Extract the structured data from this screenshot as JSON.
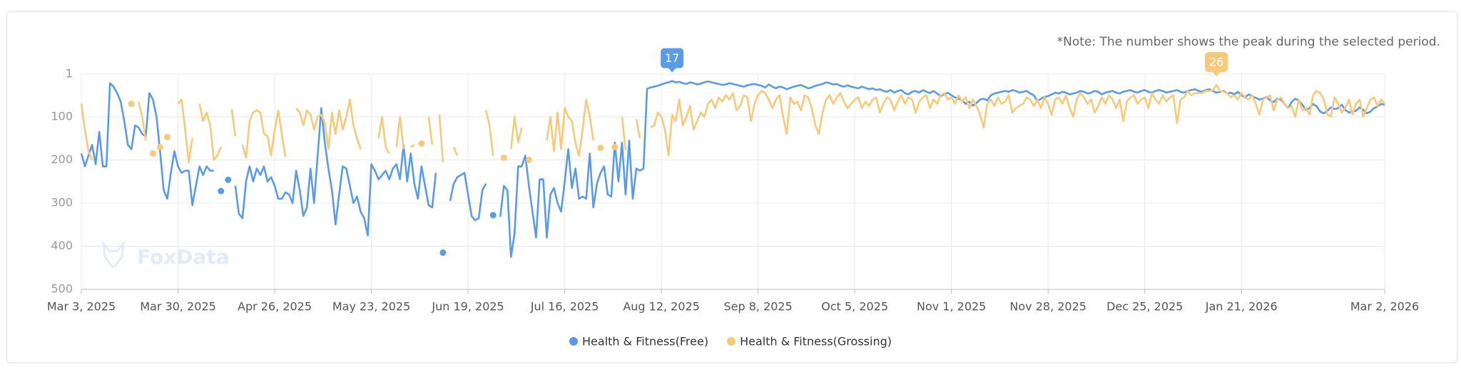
{
  "chart_data": {
    "type": "line",
    "note": "*Note: The number shows the peak during the selected period.",
    "watermark": "FoxData",
    "y_inverted": true,
    "grid": true,
    "legend": "bottom",
    "ylim": [
      1,
      500
    ],
    "yticks": [
      1,
      100,
      200,
      300,
      400,
      500
    ],
    "categories": [
      "Mar 3, 2025",
      null,
      null,
      null,
      null,
      null,
      null,
      null,
      null,
      null,
      null,
      null,
      null,
      null,
      null,
      null,
      null,
      null,
      null,
      null,
      null,
      null,
      null,
      null,
      null,
      null,
      null,
      "Mar 30, 2025",
      null,
      null,
      null,
      null,
      null,
      null,
      null,
      null,
      null,
      null,
      null,
      null,
      null,
      null,
      null,
      null,
      null,
      null,
      null,
      null,
      null,
      null,
      null,
      null,
      null,
      null,
      "Apr 26, 2025",
      null,
      null,
      null,
      null,
      null,
      null,
      null,
      null,
      null,
      null,
      null,
      null,
      null,
      null,
      null,
      null,
      null,
      null,
      null,
      null,
      null,
      null,
      null,
      null,
      null,
      null,
      "May 23, 2025",
      null,
      null,
      null,
      null,
      null,
      null,
      null,
      null,
      null,
      null,
      null,
      null,
      null,
      null,
      null,
      null,
      null,
      null,
      null,
      null,
      null,
      null,
      null,
      null,
      null,
      null,
      "Jun 19, 2025",
      null,
      null,
      null,
      null,
      null,
      null,
      null,
      null,
      null,
      null,
      null,
      null,
      null,
      null,
      null,
      null,
      null,
      null,
      null,
      null,
      null,
      null,
      null,
      null,
      null,
      null,
      "Jul 16, 2025",
      null,
      null,
      null,
      null,
      null,
      null,
      null,
      null,
      null,
      null,
      null,
      null,
      null,
      null,
      null,
      null,
      null,
      null,
      null,
      null,
      null,
      null,
      null,
      null,
      null,
      null,
      "Aug 12, 2025",
      null,
      null,
      null,
      null,
      null,
      null,
      null,
      null,
      null,
      null,
      null,
      null,
      null,
      null,
      null,
      null,
      null,
      null,
      null,
      null,
      null,
      null,
      null,
      null,
      null,
      null,
      "Sep 8, 2025",
      null,
      null,
      null,
      null,
      null,
      null,
      null,
      null,
      null,
      null,
      null,
      null,
      null,
      null,
      null,
      null,
      null,
      null,
      null,
      null,
      null,
      null,
      null,
      null,
      null,
      null,
      "Oct 5, 2025",
      null,
      null,
      null,
      null,
      null,
      null,
      null,
      null,
      null,
      null,
      null,
      null,
      null,
      null,
      null,
      null,
      null,
      null,
      null,
      null,
      null,
      null,
      null,
      null,
      null,
      null,
      "Nov 1, 2025",
      null,
      null,
      null,
      null,
      null,
      null,
      null,
      null,
      null,
      null,
      null,
      null,
      null,
      null,
      null,
      null,
      null,
      null,
      null,
      null,
      null,
      null,
      null,
      null,
      null,
      null,
      "Nov 28, 2025",
      null,
      null,
      null,
      null,
      null,
      null,
      null,
      null,
      null,
      null,
      null,
      null,
      null,
      null,
      null,
      null,
      null,
      null,
      null,
      null,
      null,
      null,
      null,
      null,
      null,
      null,
      "Dec 25, 2025",
      null,
      null,
      null,
      null,
      null,
      null,
      null,
      null,
      null,
      null,
      null,
      null,
      null,
      null,
      null,
      null,
      null,
      null,
      null,
      null,
      null,
      null,
      null,
      null,
      null,
      null,
      "Jan 21, 2026",
      null,
      null,
      null,
      null,
      null,
      null,
      null,
      null,
      null,
      null,
      null,
      null,
      null,
      null,
      null,
      null,
      null,
      null,
      null,
      null,
      null,
      null,
      null,
      null,
      null,
      null,
      null,
      null,
      null,
      null,
      null,
      null,
      null,
      null,
      null,
      null,
      null,
      null,
      null,
      "Mar 2, 2026"
    ],
    "series": [
      {
        "name": "Health & Fitness(Free)",
        "color": "#5a9be6",
        "peak_label": "17",
        "values": [
          185,
          215,
          190,
          165,
          210,
          135,
          215,
          215,
          22,
          30,
          45,
          65,
          110,
          165,
          175,
          120,
          125,
          140,
          145,
          45,
          60,
          100,
          180,
          270,
          290,
          230,
          180,
          215,
          230,
          225,
          225,
          305,
          260,
          215,
          235,
          215,
          225,
          225,
          null,
          272,
          null,
          246,
          null,
          260,
          325,
          335,
          250,
          215,
          250,
          220,
          235,
          215,
          250,
          240,
          260,
          290,
          290,
          275,
          280,
          300,
          225,
          270,
          330,
          310,
          220,
          300,
          190,
          80,
          160,
          220,
          270,
          350,
          280,
          215,
          220,
          260,
          300,
          285,
          320,
          335,
          375,
          210,
          225,
          245,
          235,
          225,
          245,
          220,
          210,
          245,
          165,
          250,
          185,
          255,
          290,
          215,
          260,
          305,
          310,
          230,
          null,
          415,
          null,
          295,
          255,
          240,
          235,
          230,
          280,
          330,
          340,
          335,
          270,
          255,
          null,
          328,
          null,
          332,
          260,
          270,
          425,
          370,
          215,
          215,
          190,
          260,
          320,
          380,
          245,
          245,
          380,
          280,
          265,
          300,
          320,
          250,
          175,
          265,
          220,
          290,
          285,
          290,
          185,
          310,
          255,
          230,
          215,
          280,
          285,
          160,
          250,
          160,
          280,
          155,
          290,
          220,
          225,
          220,
          35,
          32,
          30,
          28,
          25,
          22,
          20,
          17,
          20,
          19,
          22,
          24,
          20,
          22,
          25,
          23,
          20,
          18,
          20,
          22,
          24,
          26,
          25,
          22,
          24,
          26,
          28,
          30,
          27,
          25,
          24,
          26,
          28,
          32,
          25,
          30,
          34,
          30,
          32,
          36,
          33,
          30,
          28,
          26,
          30,
          34,
          32,
          28,
          26,
          24,
          20,
          22,
          25,
          24,
          28,
          30,
          27,
          30,
          32,
          34,
          30,
          33,
          36,
          34,
          38,
          36,
          40,
          42,
          38,
          44,
          40,
          38,
          45,
          48,
          42,
          40,
          44,
          38,
          42,
          45,
          40,
          46,
          52,
          48,
          44,
          50,
          55,
          58,
          62,
          70,
          65,
          74,
          68,
          60,
          58,
          62,
          50,
          46,
          44,
          42,
          40,
          42,
          38,
          40,
          44,
          42,
          40,
          46,
          50,
          64,
          58,
          54,
          52,
          48,
          44,
          46,
          42,
          44,
          48,
          46,
          44,
          40,
          42,
          46,
          44,
          40,
          42,
          48,
          44,
          42,
          40,
          44,
          46,
          42,
          40,
          38,
          42,
          44,
          40,
          38,
          42,
          44,
          40,
          38,
          40,
          44,
          42,
          40,
          38,
          42,
          44,
          40,
          38,
          36,
          40,
          42,
          38,
          36,
          40,
          44,
          42,
          40,
          46,
          44,
          48,
          42,
          50,
          55,
          48,
          52,
          56,
          60,
          58,
          54,
          62,
          66,
          58,
          60,
          70,
          80,
          66,
          58,
          62,
          72,
          84,
          80,
          70,
          76,
          88,
          92,
          86,
          78,
          82,
          80,
          72,
          84,
          90,
          88,
          86,
          78,
          84,
          92,
          88,
          80,
          76,
          70,
          72
        ]
      },
      {
        "name": "Health & Fitness(Grossing)",
        "color": "#f7c978",
        "peak_label": "26",
        "values": [
          70,
          130,
          180,
          200,
          null,
          null,
          null,
          null,
          null,
          null,
          null,
          null,
          null,
          null,
          70,
          null,
          65,
          100,
          155,
          null,
          185,
          null,
          170,
          null,
          147,
          null,
          null,
          70,
          60,
          130,
          205,
          150,
          null,
          70,
          110,
          90,
          120,
          200,
          190,
          170,
          null,
          null,
          82,
          145,
          null,
          165,
          195,
          110,
          90,
          85,
          90,
          140,
          145,
          190,
          130,
          85,
          140,
          193,
          null,
          null,
          80,
          90,
          120,
          85,
          95,
          130,
          100,
          95,
          115,
          175,
          90,
          140,
          85,
          130,
          100,
          60,
          120,
          150,
          175,
          null,
          null,
          null,
          null,
          150,
          100,
          170,
          185,
          null,
          170,
          100,
          175,
          null,
          170,
          165,
          null,
          162,
          null,
          100,
          165,
          null,
          95,
          205,
          null,
          null,
          170,
          190,
          null,
          null,
          null,
          null,
          null,
          null,
          null,
          85,
          120,
          190,
          null,
          null,
          195,
          null,
          175,
          100,
          160,
          125,
          null,
          200,
          null,
          null,
          null,
          null,
          155,
          100,
          180,
          90,
          175,
          80,
          100,
          110,
          160,
          190,
          130,
          60,
          100,
          155,
          null,
          172,
          null,
          null,
          null,
          170,
          null,
          100,
          178,
          null,
          null,
          105,
          150,
          null,
          null,
          125,
          120,
          90,
          100,
          130,
          190,
          95,
          110,
          60,
          120,
          100,
          75,
          130,
          110,
          90,
          100,
          70,
          60,
          80,
          55,
          65,
          50,
          60,
          45,
          85,
          75,
          50,
          55,
          110,
          70,
          50,
          40,
          45,
          60,
          80,
          60,
          50,
          100,
          140,
          55,
          70,
          65,
          85,
          50,
          55,
          80,
          120,
          140,
          90,
          60,
          50,
          70,
          55,
          45,
          65,
          80,
          70,
          60,
          55,
          80,
          65,
          75,
          60,
          55,
          90,
          70,
          55,
          60,
          85,
          65,
          50,
          70,
          55,
          60,
          90,
          65,
          55,
          50,
          80,
          60,
          70,
          50,
          45,
          60,
          55,
          70,
          50,
          65,
          55,
          80,
          60,
          75,
          95,
          125,
          70,
          60,
          75,
          55,
          70,
          65,
          50,
          90,
          80,
          75,
          70,
          55,
          60,
          75,
          60,
          80,
          55,
          70,
          95,
          60,
          55,
          70,
          50,
          80,
          100,
          60,
          45,
          55,
          70,
          60,
          90,
          75,
          55,
          70,
          50,
          60,
          80,
          60,
          110,
          65,
          55,
          50,
          70,
          60,
          55,
          80,
          45,
          60,
          70,
          50,
          65,
          55,
          50,
          115,
          60,
          55,
          40,
          50,
          45,
          45,
          45,
          40,
          40,
          38,
          26,
          40,
          42,
          45,
          55,
          50,
          60,
          45,
          55,
          60,
          50,
          70,
          95,
          60,
          55,
          50,
          85,
          60,
          55,
          70,
          80,
          75,
          100,
          60,
          85,
          80,
          95,
          50,
          40,
          45,
          60,
          95,
          100,
          55,
          70,
          90,
          80,
          60,
          95,
          70,
          60,
          100,
          80,
          60,
          55,
          75,
          60,
          70
        ]
      }
    ]
  }
}
